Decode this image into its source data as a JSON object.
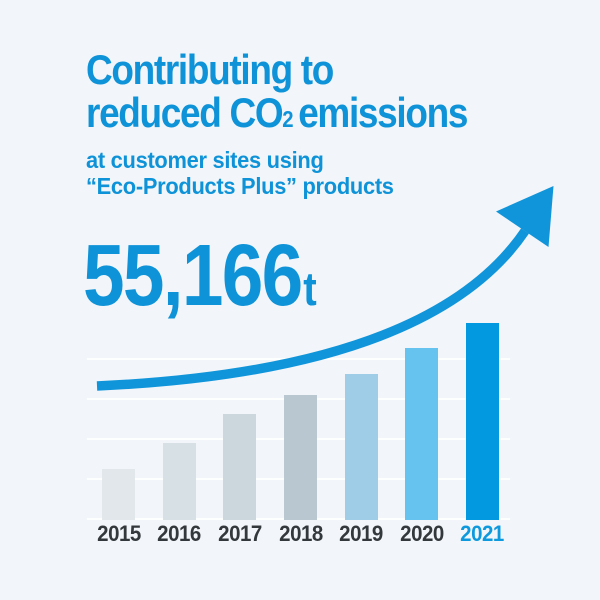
{
  "colors": {
    "background": "#f2f5f9",
    "accent_blue": "#0f93d8",
    "arrow_blue": "#1095da",
    "highlight_bar_blue": "#0299e0",
    "year_label_dark": "#33383c",
    "highlight_year_blue": "#0d99dd",
    "gridline_white": "#ffffff"
  },
  "title": {
    "line1": "Contributing to",
    "line2_prefix": "reduced CO",
    "line2_subscript": "2",
    "line2_suffix": "emissions"
  },
  "subtitle": {
    "line1": "at customer sites using",
    "line2": "“Eco-Products Plus” products"
  },
  "headline_value": {
    "number": "55,166",
    "unit": "t"
  },
  "chart_data": {
    "type": "bar",
    "title": "Contributing to reduced CO₂ emissions at customer sites using “Eco-Products Plus” products",
    "xlabel": "",
    "ylabel": "",
    "categories": [
      "2015",
      "2016",
      "2017",
      "2018",
      "2019",
      "2020",
      "2021"
    ],
    "values": [
      14300,
      21500,
      29700,
      35100,
      40900,
      48200,
      55166
    ],
    "unit": "t",
    "ylim": [
      0,
      56000
    ],
    "grid": true,
    "legend": false,
    "value_label": {
      "category": "2021",
      "text": "55,166t"
    },
    "highlight_category": "2021",
    "bar_colors": [
      "#e1e7ea",
      "#d7e0e5",
      "#ccd7dd",
      "#b8c7d0",
      "#9fcde7",
      "#66c3ef",
      "#0299e0"
    ],
    "label_colors": [
      "#33383c",
      "#33383c",
      "#33383c",
      "#33383c",
      "#33383c",
      "#33383c",
      "#0d99dd"
    ]
  },
  "icons": {
    "growth_arrow": "up-right-curved-arrow"
  }
}
